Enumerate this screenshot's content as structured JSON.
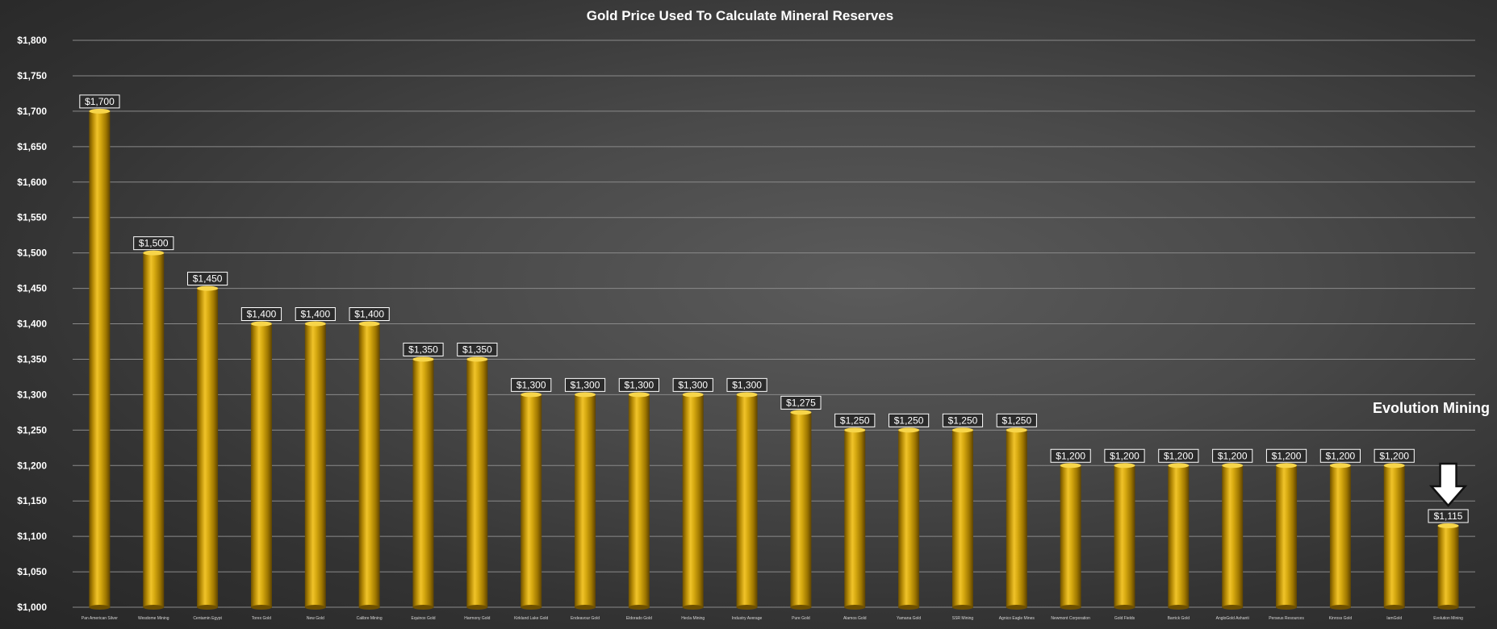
{
  "chart_data": {
    "type": "bar",
    "title": "Gold Price Used To Calculate Mineral Reserves",
    "xlabel": "",
    "ylabel": "",
    "ylim": [
      1000,
      1800
    ],
    "yticks": [
      "$1,000",
      "$1,050",
      "$1,100",
      "$1,150",
      "$1,200",
      "$1,250",
      "$1,300",
      "$1,350",
      "$1,400",
      "$1,450",
      "$1,500",
      "$1,550",
      "$1,600",
      "$1,650",
      "$1,700",
      "$1,750",
      "$1,800"
    ],
    "grid": true,
    "categories": [
      "Pan American Silver",
      "Wesdome Mining",
      "Centamin Egypt",
      "Torex Gold",
      "New Gold",
      "Calibre Mining",
      "Equinox Gold",
      "Harmony Gold",
      "Kirkland Lake Gold",
      "Endeavour Gold",
      "Eldorado Gold",
      "Hecla Mining",
      "Industry Average",
      "Pure Gold",
      "Alamos Gold",
      "Yamana Gold",
      "SSR Mining",
      "Agnico Eagle Mines",
      "Newmont Corporation",
      "Gold Fields",
      "Barrick Gold",
      "AngloGold Ashanti",
      "Perseus Resources",
      "Kinross Gold",
      "IamGold",
      "Evolution Mining"
    ],
    "values": [
      1700,
      1500,
      1450,
      1400,
      1400,
      1400,
      1350,
      1350,
      1300,
      1300,
      1300,
      1300,
      1300,
      1275,
      1250,
      1250,
      1250,
      1250,
      1200,
      1200,
      1200,
      1200,
      1200,
      1200,
      1200,
      1115
    ],
    "data_labels": [
      "$1,700",
      "$1,500",
      "$1,450",
      "$1,400",
      "$1,400",
      "$1,400",
      "$1,350",
      "$1,350",
      "$1,300",
      "$1,300",
      "$1,300",
      "$1,300",
      "$1,300",
      "$1,275",
      "$1,250",
      "$1,250",
      "$1,250",
      "$1,250",
      "$1,200",
      "$1,200",
      "$1,200",
      "$1,200",
      "$1,200",
      "$1,200",
      "$1,200",
      "$1,115"
    ],
    "bar_color": "#c89a0a",
    "annotations": [
      {
        "text": "Evolution Mining",
        "target_category": "Evolution Mining",
        "icon": "down-arrow-icon"
      }
    ]
  },
  "colors": {
    "text": "#ffffff",
    "gridline": "#8a8a8a",
    "bar_light": "#f2c62e",
    "bar_dark": "#7a5a00"
  }
}
